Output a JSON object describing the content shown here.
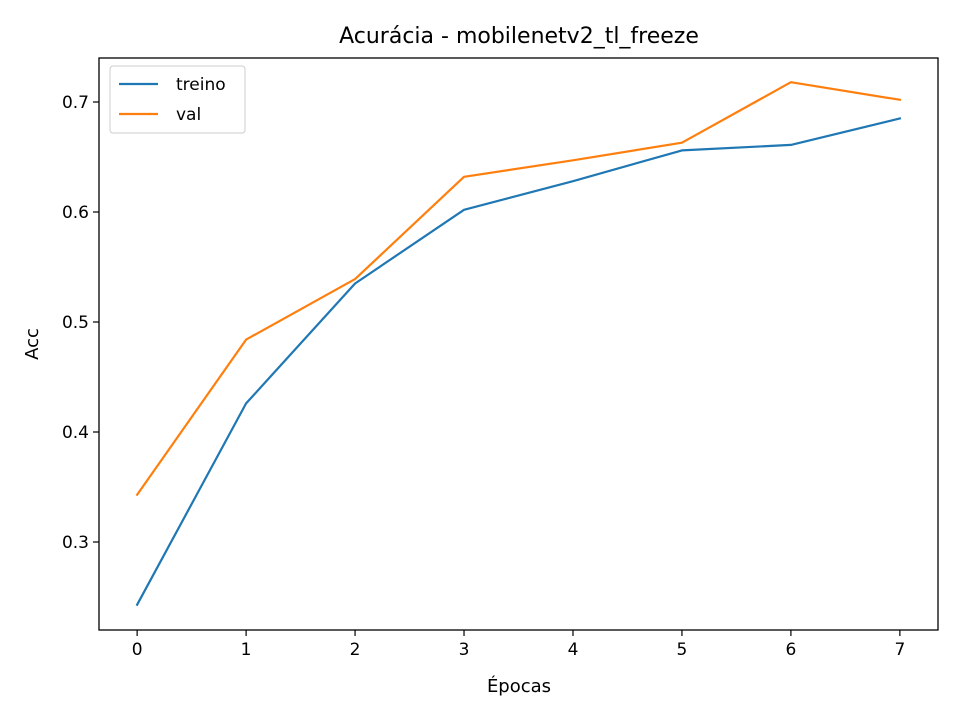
{
  "chart_data": {
    "type": "line",
    "title": "Acurácia - mobilenetv2_tl_freeze",
    "xlabel": "Épocas",
    "ylabel": "Acc",
    "x": [
      0,
      1,
      2,
      3,
      4,
      5,
      6,
      7
    ],
    "series": [
      {
        "name": "treino",
        "color": "#1f77b4",
        "values": [
          0.243,
          0.426,
          0.535,
          0.602,
          0.628,
          0.656,
          0.661,
          0.685
        ]
      },
      {
        "name": "val",
        "color": "#ff7f0e",
        "values": [
          0.343,
          0.484,
          0.539,
          0.632,
          0.647,
          0.663,
          0.718,
          0.702
        ]
      }
    ],
    "xlim": [
      -0.35,
      7.35
    ],
    "ylim": [
      0.22,
      0.74
    ],
    "xticks": [
      "0",
      "1",
      "2",
      "3",
      "4",
      "5",
      "6",
      "7"
    ],
    "yticks": [
      "0.3",
      "0.4",
      "0.5",
      "0.6",
      "0.7"
    ],
    "grid": false,
    "legend": "upper left"
  }
}
